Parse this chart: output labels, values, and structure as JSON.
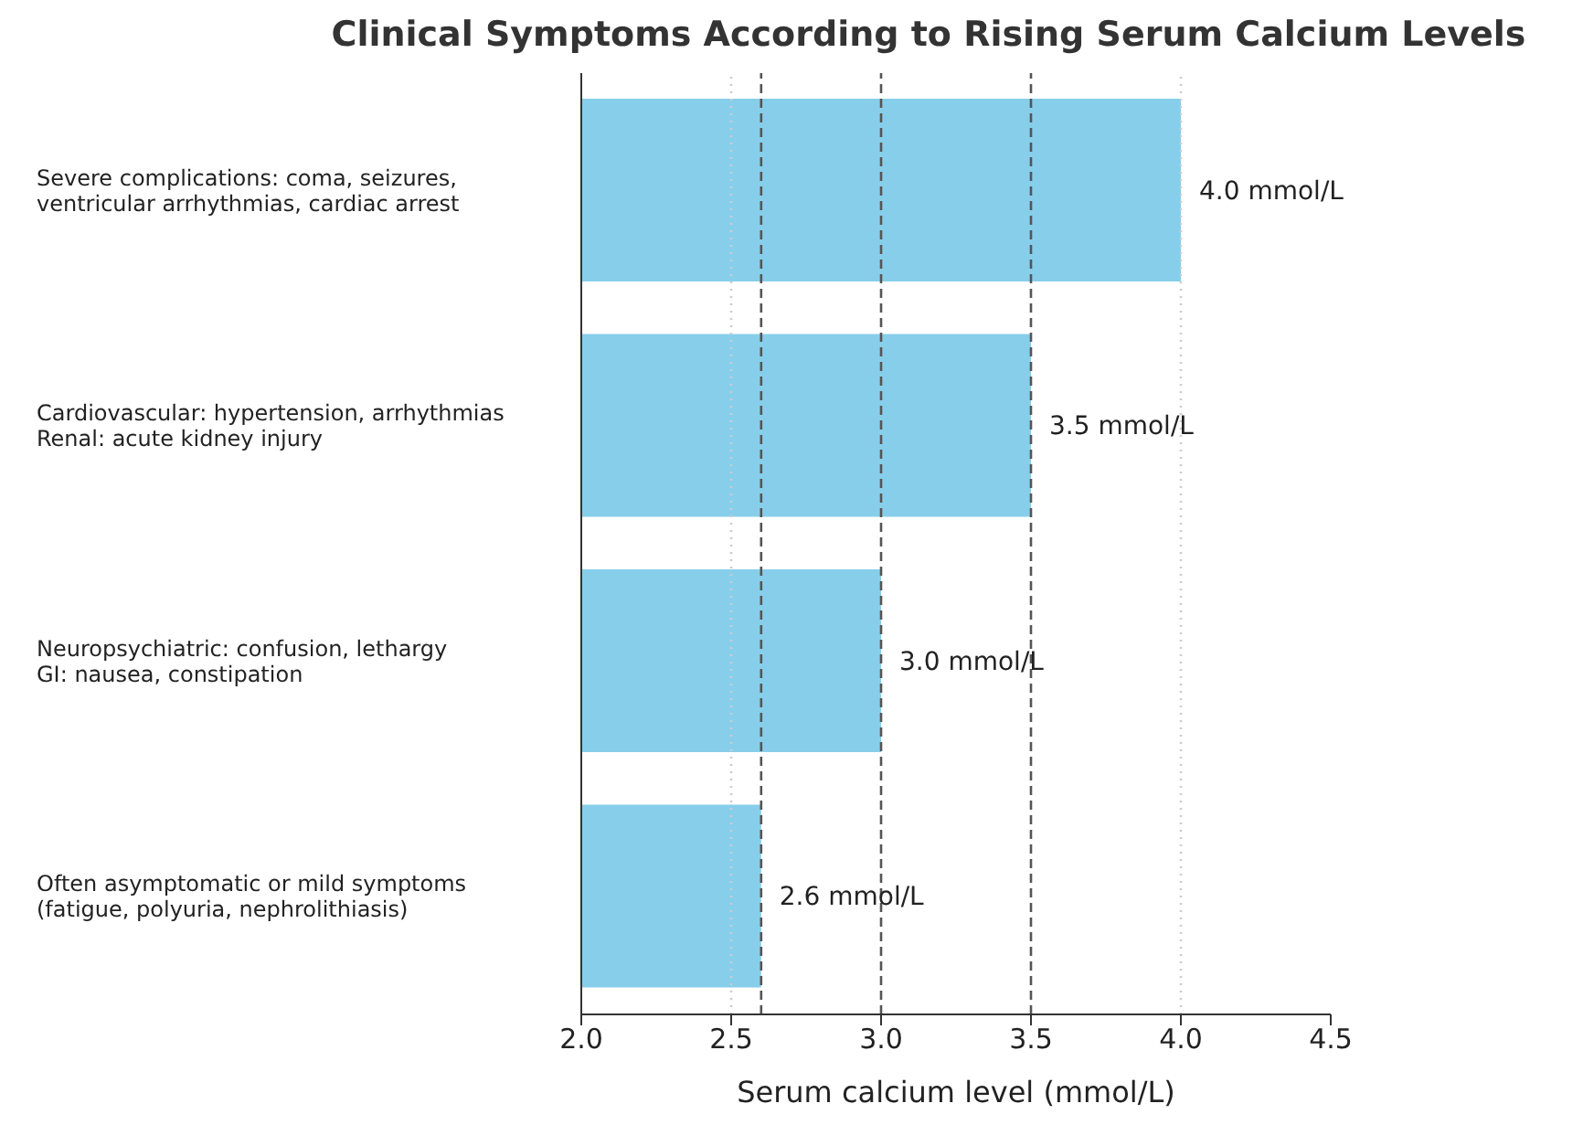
{
  "chart_data": {
    "type": "bar",
    "orientation": "horizontal",
    "title": "Clinical Symptoms According to Rising Serum Calcium Levels",
    "xlabel": "Serum calcium level (mmol/L)",
    "categories": [
      "Severe complications: coma, seizures,\nventricular arrhythmias, cardiac arrest",
      "Cardiovascular: hypertension, arrhythmias\nRenal: acute kidney injury",
      "Neuropsychiatric: confusion, lethargy\nGI: nausea, constipation",
      "Often asymptomatic or mild symptoms\n(fatigue, polyuria, nephrolithiasis)"
    ],
    "values": [
      4.0,
      3.5,
      3.0,
      2.6
    ],
    "color": "#87ceeb",
    "value_labels": [
      "4.0 mmol/L",
      "3.5 mmol/L",
      "3.0 mmol/L",
      "2.6 mmol/L"
    ],
    "xlim": [
      2.0,
      4.5
    ],
    "xticks": [
      {
        "value": 2,
        "label": "2.0"
      },
      {
        "value": 2.5,
        "label": "2.5"
      },
      {
        "value": 3,
        "label": "3.0"
      },
      {
        "value": 3.5,
        "label": "3.5"
      },
      {
        "value": 4,
        "label": "4.0"
      },
      {
        "value": 4.5,
        "label": "4.5"
      }
    ],
    "ref_lines": [
      {
        "axis": "x",
        "value": 2.5,
        "line_style": "dotted",
        "color": "#cccccc"
      },
      {
        "axis": "x",
        "value": 2.6,
        "line_style": "dashed",
        "color": "#555555"
      },
      {
        "axis": "x",
        "value": 3.0,
        "line_style": "dashed",
        "color": "#555555"
      },
      {
        "axis": "x",
        "value": 3.5,
        "line_style": "dashed",
        "color": "#555555"
      },
      {
        "axis": "x",
        "value": 4.0,
        "line_style": "dotted",
        "color": "#cccccc"
      }
    ]
  }
}
